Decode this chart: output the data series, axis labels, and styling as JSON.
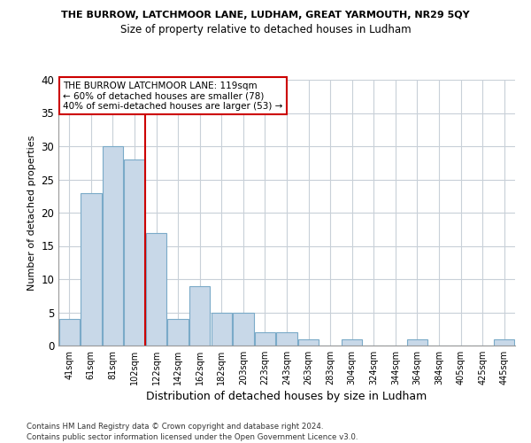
{
  "title1": "THE BURROW, LATCHMOOR LANE, LUDHAM, GREAT YARMOUTH, NR29 5QY",
  "title2": "Size of property relative to detached houses in Ludham",
  "xlabel": "Distribution of detached houses by size in Ludham",
  "ylabel": "Number of detached properties",
  "categories": [
    "41sqm",
    "61sqm",
    "81sqm",
    "102sqm",
    "122sqm",
    "142sqm",
    "162sqm",
    "182sqm",
    "203sqm",
    "223sqm",
    "243sqm",
    "263sqm",
    "283sqm",
    "304sqm",
    "324sqm",
    "344sqm",
    "364sqm",
    "384sqm",
    "405sqm",
    "425sqm",
    "445sqm"
  ],
  "values": [
    4,
    23,
    30,
    28,
    17,
    4,
    9,
    5,
    5,
    2,
    2,
    1,
    0,
    1,
    0,
    0,
    1,
    0,
    0,
    0,
    1
  ],
  "bar_color": "#c8d8e8",
  "bar_edge_color": "#7aaac8",
  "vline_x_idx": 3.5,
  "vline_color": "#cc0000",
  "annotation_title": "THE BURROW LATCHMOOR LANE: 119sqm",
  "annotation_line1": "← 60% of detached houses are smaller (78)",
  "annotation_line2": "40% of semi-detached houses are larger (53) →",
  "footer1": "Contains HM Land Registry data © Crown copyright and database right 2024.",
  "footer2": "Contains public sector information licensed under the Open Government Licence v3.0.",
  "ylim": [
    0,
    40
  ],
  "yticks": [
    0,
    5,
    10,
    15,
    20,
    25,
    30,
    35,
    40
  ],
  "background_color": "#ffffff",
  "grid_color": "#c8d0d8"
}
